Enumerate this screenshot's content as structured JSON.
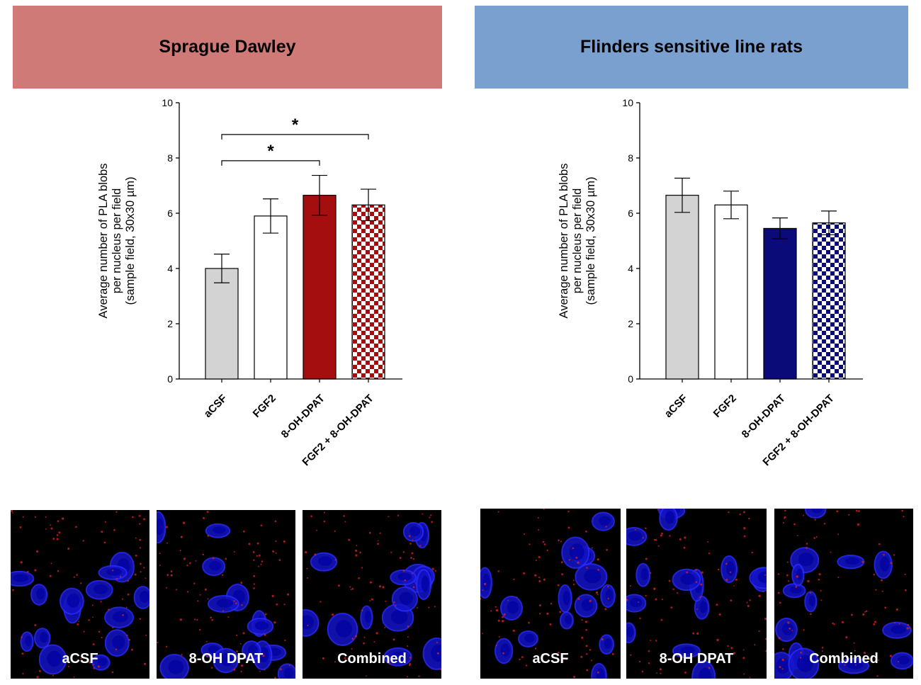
{
  "panels": [
    {
      "banner": "Sprague Dawley",
      "banner_color": "#d07a78",
      "micrographs": [
        "aCSF",
        "8-OH DPAT",
        "Combined"
      ]
    },
    {
      "banner": "Flinders sensitive line rats",
      "banner_color": "#7aa0d0",
      "micrographs": [
        "aCSF",
        "8-OH DPAT",
        "Combined"
      ]
    }
  ],
  "chart_data": [
    {
      "type": "bar",
      "title": "",
      "ylabel_lines": [
        "Average number of PLA blobs",
        "per nucleus per field",
        "(sample field, 30x30 µm)"
      ],
      "categories": [
        "aCSF",
        "FGF2",
        "8-OH-DPAT",
        "FGF2 + 8-OH-DPAT"
      ],
      "values": [
        4.0,
        5.9,
        6.65,
        6.3
      ],
      "errors": [
        0.52,
        0.62,
        0.72,
        0.57
      ],
      "yticks": [
        "0",
        "2",
        "4",
        "6",
        "8",
        "10"
      ],
      "ylim": [
        0,
        10
      ],
      "colors": [
        "#d3d3d3",
        "#ffffff",
        "#a50e0e",
        "checker"
      ],
      "accent": "#a50e0e",
      "significance": [
        {
          "from": 0,
          "to": 2,
          "label": "*",
          "y": 7.9
        },
        {
          "from": 0,
          "to": 3,
          "label": "*",
          "y": 8.85
        }
      ]
    },
    {
      "type": "bar",
      "title": "",
      "ylabel_lines": [
        "Average number of PLA blobs",
        "per nucleus per field",
        "(sample field, 30x30 µm)"
      ],
      "categories": [
        "aCSF",
        "FGF2",
        "8-OH-DPAT",
        "FGF2 + 8-OH-DPAT"
      ],
      "values": [
        6.65,
        6.3,
        5.45,
        5.65
      ],
      "errors": [
        0.62,
        0.5,
        0.38,
        0.43
      ],
      "yticks": [
        "0",
        "2",
        "4",
        "6",
        "8",
        "10"
      ],
      "ylim": [
        0,
        10
      ],
      "colors": [
        "#d3d3d3",
        "#ffffff",
        "#0a0a78",
        "checker"
      ],
      "accent": "#0a0a78",
      "significance": []
    }
  ]
}
